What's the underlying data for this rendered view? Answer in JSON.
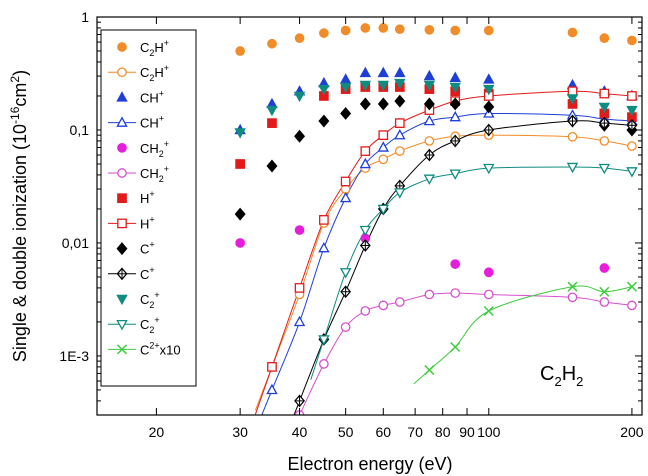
{
  "chart_data": {
    "type": "scatter",
    "xlabel": "Electron energy (eV)",
    "ylabel": "Single & double ionization (10",
    "ylabel_sup": "-16",
    "ylabel_tail": "cm",
    "ylabel_sup2": "2",
    "ylabel_close": ")",
    "x_scale": "log",
    "y_scale": "log",
    "xlim": [
      15,
      210
    ],
    "ylim": [
      0.0003,
      1.0
    ],
    "x_ticks": [
      20,
      30,
      40,
      50,
      60,
      70,
      80,
      90,
      100,
      200
    ],
    "x_tick_labels": [
      "20",
      "30",
      "40",
      "50",
      "60",
      "70",
      "80",
      "90",
      "100",
      "200"
    ],
    "y_ticks": [
      0.001,
      0.01,
      0.1,
      1
    ],
    "y_tick_labels": [
      "1E-3",
      "0,01",
      "0,1",
      "1"
    ],
    "annotation": {
      "base": "C",
      "sub1": "2",
      "mid": "H",
      "sub2": "2"
    },
    "legend_position": "left",
    "series": [
      {
        "name": "C2H+",
        "lb": "C",
        "ls": "2",
        "lm": "H",
        "lsup": "+",
        "marker": "circle",
        "filled": true,
        "line": false,
        "color": "#F28C28",
        "x": [
          30,
          35,
          40,
          45,
          50,
          55,
          60,
          65,
          75,
          85,
          100,
          150,
          175,
          200
        ],
        "y": [
          0.5,
          0.58,
          0.65,
          0.72,
          0.76,
          0.8,
          0.8,
          0.78,
          0.77,
          0.76,
          0.76,
          0.73,
          0.65,
          0.62
        ]
      },
      {
        "name": "C2H+",
        "lb": "C",
        "ls": "2",
        "lm": "H",
        "lsup": "+",
        "marker": "circle",
        "filled": false,
        "line": true,
        "color": "#F28C28",
        "x": [
          35,
          40,
          45,
          50,
          55,
          60,
          65,
          75,
          85,
          100,
          150,
          175,
          200
        ],
        "y": [
          0.0008,
          0.0035,
          0.015,
          0.03,
          0.046,
          0.055,
          0.065,
          0.08,
          0.088,
          0.09,
          0.087,
          0.08,
          0.072
        ]
      },
      {
        "name": "CH+",
        "lb": "CH",
        "ls": "",
        "lm": "",
        "lsup": "+",
        "marker": "triangle",
        "filled": true,
        "line": false,
        "color": "#1F3FD6",
        "x": [
          30,
          35,
          40,
          45,
          50,
          55,
          60,
          65,
          75,
          85,
          100,
          150,
          175,
          200
        ],
        "y": [
          0.1,
          0.17,
          0.22,
          0.26,
          0.28,
          0.32,
          0.32,
          0.32,
          0.3,
          0.29,
          0.28,
          0.25,
          0.22,
          0.2
        ]
      },
      {
        "name": "CH+",
        "lb": "CH",
        "ls": "",
        "lm": "",
        "lsup": "+",
        "marker": "triangle",
        "filled": false,
        "line": true,
        "color": "#1F3FD6",
        "x": [
          35,
          40,
          45,
          50,
          55,
          60,
          65,
          75,
          85,
          100,
          150,
          175,
          200
        ],
        "y": [
          0.0005,
          0.002,
          0.009,
          0.025,
          0.05,
          0.07,
          0.09,
          0.12,
          0.13,
          0.14,
          0.135,
          0.125,
          0.12
        ]
      },
      {
        "name": "CH2+",
        "lb": "CH",
        "ls": "2",
        "lm": "",
        "lsup": "+",
        "marker": "circle",
        "filled": true,
        "line": false,
        "color": "#E61EDC",
        "x": [
          30,
          40,
          55,
          85,
          100,
          175
        ],
        "y": [
          0.01,
          0.013,
          0.011,
          0.0065,
          0.0055,
          0.006
        ]
      },
      {
        "name": "CH2+",
        "lb": "CH",
        "ls": "2",
        "lm": "",
        "lsup": "+",
        "marker": "circle",
        "filled": false,
        "line": true,
        "color": "#D64FD0",
        "x": [
          40,
          45,
          50,
          55,
          60,
          65,
          75,
          85,
          100,
          150,
          175,
          200
        ],
        "y": [
          0.0003,
          0.00085,
          0.0018,
          0.0025,
          0.0028,
          0.003,
          0.0035,
          0.0036,
          0.0035,
          0.0033,
          0.003,
          0.0028
        ]
      },
      {
        "name": "H+",
        "lb": "H",
        "ls": "",
        "lm": "",
        "lsup": "+",
        "marker": "square",
        "filled": true,
        "line": false,
        "color": "#E31A1A",
        "x": [
          30,
          35,
          45,
          50,
          55,
          60,
          65,
          75,
          85,
          100,
          150,
          175,
          200
        ],
        "y": [
          0.05,
          0.115,
          0.2,
          0.23,
          0.24,
          0.24,
          0.24,
          0.23,
          0.22,
          0.21,
          0.17,
          0.14,
          0.13
        ]
      },
      {
        "name": "H+",
        "lb": "H",
        "ls": "",
        "lm": "",
        "lsup": "+",
        "marker": "square",
        "filled": false,
        "line": true,
        "color": "#E31A1A",
        "x": [
          35,
          40,
          45,
          50,
          55,
          60,
          65,
          75,
          85,
          100,
          150,
          175,
          200
        ],
        "y": [
          0.0008,
          0.004,
          0.016,
          0.035,
          0.065,
          0.09,
          0.115,
          0.15,
          0.18,
          0.2,
          0.22,
          0.21,
          0.2
        ]
      },
      {
        "name": "C+",
        "lb": "C",
        "ls": "",
        "lm": "",
        "lsup": "+",
        "marker": "diamond",
        "filled": true,
        "line": false,
        "color": "#000000",
        "x": [
          30,
          35,
          40,
          45,
          50,
          55,
          60,
          65,
          75,
          85,
          100,
          150,
          175,
          200
        ],
        "y": [
          0.018,
          0.048,
          0.088,
          0.12,
          0.14,
          0.17,
          0.17,
          0.18,
          0.17,
          0.17,
          0.16,
          0.12,
          0.11,
          0.1
        ]
      },
      {
        "name": "C+",
        "lb": "C",
        "ls": "",
        "lm": "",
        "lsup": "+",
        "marker": "diamond-cross",
        "filled": false,
        "line": true,
        "color": "#000000",
        "x": [
          40,
          45,
          50,
          55,
          60,
          65,
          75,
          85,
          100,
          150,
          175,
          200
        ],
        "y": [
          0.0004,
          0.0014,
          0.0037,
          0.0095,
          0.02,
          0.032,
          0.06,
          0.08,
          0.1,
          0.12,
          0.115,
          0.11
        ]
      },
      {
        "name": "C2+",
        "lb": "C",
        "ls": "2",
        "lm": "",
        "lsup": "+",
        "marker": "triangle-down",
        "filled": true,
        "line": false,
        "color": "#0F8C80",
        "x": [
          30,
          35,
          40,
          45,
          50,
          55,
          60,
          65,
          75,
          85,
          100,
          150,
          175,
          200
        ],
        "y": [
          0.095,
          0.15,
          0.2,
          0.23,
          0.24,
          0.25,
          0.25,
          0.26,
          0.25,
          0.24,
          0.23,
          0.19,
          0.16,
          0.15
        ]
      },
      {
        "name": "C2+",
        "lb": "C",
        "ls": "2",
        "lm": "",
        "lsup": "+",
        "marker": "triangle-down",
        "filled": false,
        "line": true,
        "color": "#0F8C80",
        "x": [
          45,
          50,
          55,
          60,
          65,
          75,
          85,
          100,
          150,
          175,
          200
        ],
        "y": [
          0.0014,
          0.0055,
          0.013,
          0.02,
          0.028,
          0.037,
          0.041,
          0.046,
          0.047,
          0.046,
          0.043
        ]
      },
      {
        "name": "C2+x10",
        "lb": "C",
        "ls": "",
        "lm": "",
        "lsup": "2+",
        "ltail": "x10",
        "marker": "x",
        "filled": false,
        "line": true,
        "color": "#3DCC3D",
        "x": [
          75,
          85,
          100,
          150,
          175,
          200
        ],
        "y": [
          0.00075,
          0.0012,
          0.0025,
          0.0041,
          0.0037,
          0.0041
        ]
      }
    ]
  }
}
